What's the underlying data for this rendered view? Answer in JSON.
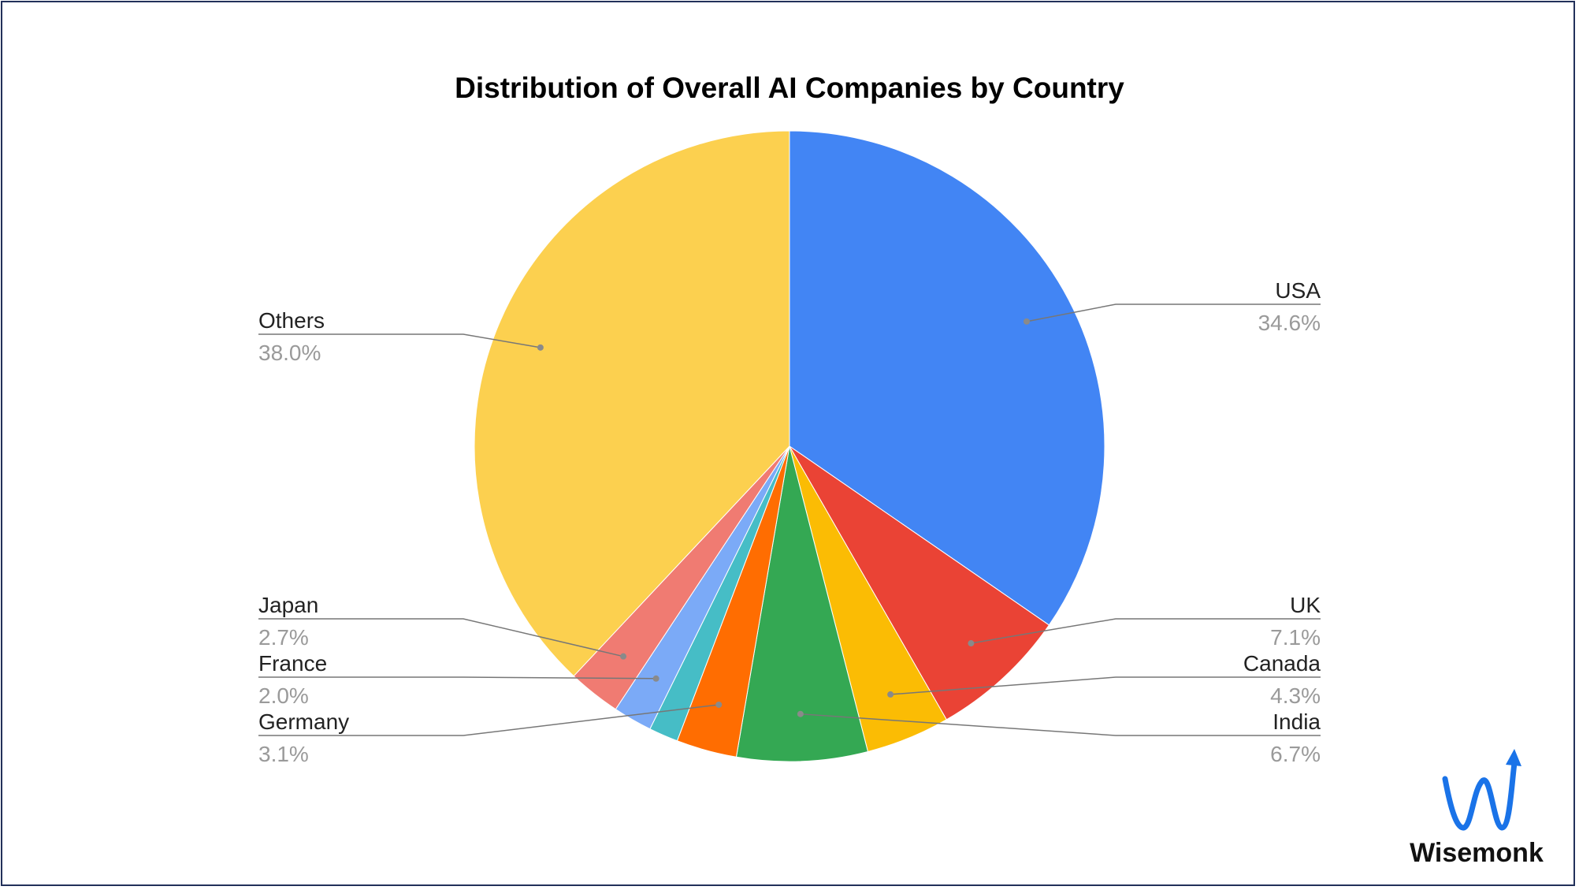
{
  "chart_data": {
    "type": "pie",
    "title": "Distribution of Overall AI Companies by Country",
    "slices": [
      {
        "label": "USA",
        "value": 34.6,
        "pct_label": "34.6%",
        "color": "#4285F4"
      },
      {
        "label": "UK",
        "value": 7.1,
        "pct_label": "7.1%",
        "color": "#EA4335"
      },
      {
        "label": "Canada",
        "value": 4.3,
        "pct_label": "4.3%",
        "color": "#FBBC04"
      },
      {
        "label": "India",
        "value": 6.7,
        "pct_label": "6.7%",
        "color": "#34A853"
      },
      {
        "label": "Germany",
        "value": 3.1,
        "pct_label": "3.1%",
        "color": "#FF6D01"
      },
      {
        "label": "",
        "value": 1.5,
        "pct_label": "",
        "color": "#46BDC6"
      },
      {
        "label": "France",
        "value": 2.0,
        "pct_label": "2.0%",
        "color": "#7BAAF7"
      },
      {
        "label": "Japan",
        "value": 2.7,
        "pct_label": "2.7%",
        "color": "#F07B72"
      },
      {
        "label": "Others",
        "value": 38.0,
        "pct_label": "38.0%",
        "color": "#FCD04F"
      }
    ],
    "legend": "none"
  },
  "brand": {
    "name": "Wisemonk",
    "logo_color": "#1A73E8"
  }
}
